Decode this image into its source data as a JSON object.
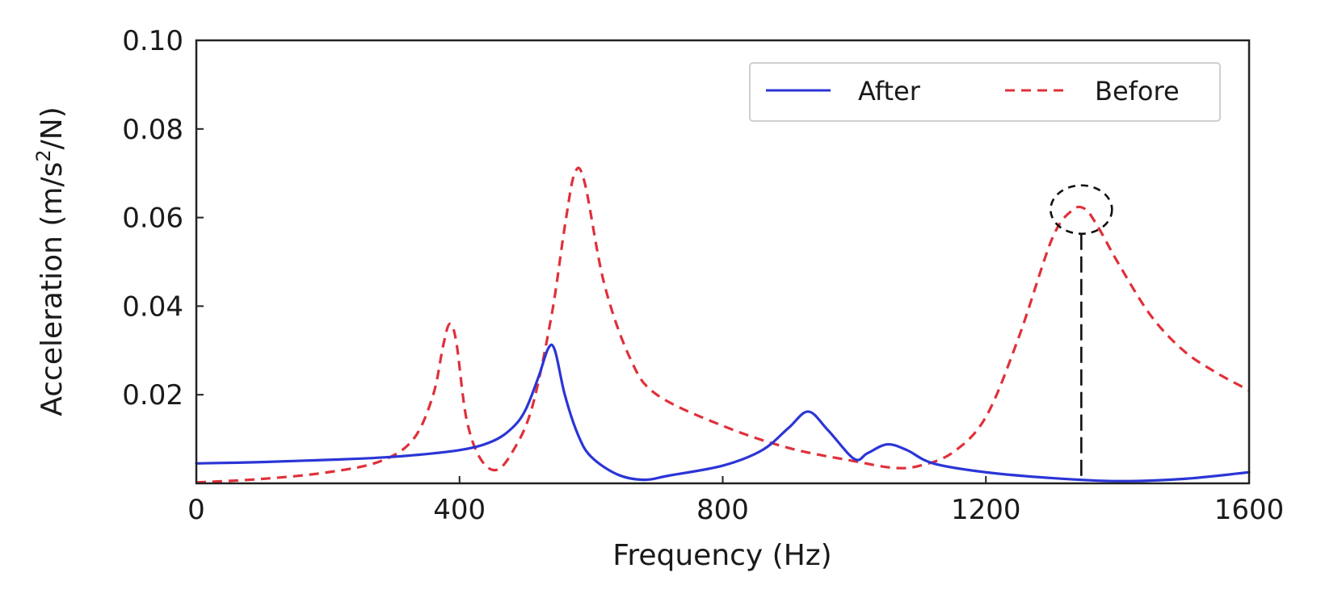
{
  "chart_data": {
    "type": "line",
    "title": "",
    "xlabel": "Frequency (Hz)",
    "ylabel_main": "Acceleration (m/s",
    "ylabel_sup": "2",
    "ylabel_tail": "/N)",
    "xlim": [
      0,
      1600
    ],
    "ylim": [
      0,
      0.1
    ],
    "xticks": [
      0,
      400,
      800,
      1200,
      1600
    ],
    "xtick_labels": [
      "0",
      "400",
      "800",
      "1200",
      "1600"
    ],
    "yticks": [
      0.02,
      0.04,
      0.06,
      0.08,
      0.1
    ],
    "ytick_labels": [
      "0.02",
      "0.04",
      "0.06",
      "0.08",
      "0.10"
    ],
    "grid": false,
    "legend_position": "top-right",
    "series": [
      {
        "name": "After",
        "color": "#2b35d6",
        "style": "solid",
        "x": [
          0,
          100,
          200,
          300,
          400,
          450,
          480,
          500,
          520,
          535,
          545,
          560,
          580,
          600,
          640,
          680,
          720,
          800,
          860,
          900,
          930,
          960,
          1000,
          1020,
          1050,
          1080,
          1120,
          1200,
          1300,
          1400,
          1500,
          1600
        ],
        "y": [
          0.0045,
          0.0048,
          0.0053,
          0.006,
          0.0075,
          0.0095,
          0.0125,
          0.0165,
          0.024,
          0.0305,
          0.03,
          0.02,
          0.011,
          0.006,
          0.002,
          0.0008,
          0.0018,
          0.004,
          0.0075,
          0.0125,
          0.0162,
          0.012,
          0.0055,
          0.0068,
          0.0088,
          0.0075,
          0.0045,
          0.0025,
          0.0012,
          0.0005,
          0.001,
          0.0025
        ]
      },
      {
        "name": "Before",
        "color": "#e0303a",
        "style": "dashed",
        "x": [
          0,
          100,
          200,
          280,
          330,
          360,
          375,
          385,
          395,
          410,
          430,
          455,
          480,
          510,
          540,
          560,
          575,
          590,
          620,
          660,
          700,
          800,
          900,
          1000,
          1060,
          1100,
          1150,
          1200,
          1250,
          1300,
          1330,
          1350,
          1370,
          1400,
          1450,
          1500,
          1550,
          1600
        ],
        "y": [
          0.0002,
          0.001,
          0.0025,
          0.005,
          0.01,
          0.02,
          0.031,
          0.036,
          0.032,
          0.015,
          0.006,
          0.003,
          0.007,
          0.017,
          0.038,
          0.058,
          0.07,
          0.068,
          0.045,
          0.028,
          0.02,
          0.013,
          0.008,
          0.005,
          0.0035,
          0.004,
          0.007,
          0.015,
          0.033,
          0.055,
          0.0615,
          0.062,
          0.058,
          0.05,
          0.038,
          0.03,
          0.025,
          0.021
        ]
      }
    ],
    "annotation": {
      "type": "circle-with-dropline",
      "x": 1345,
      "y": 0.0618,
      "drop_to_y": 0.0015
    }
  }
}
